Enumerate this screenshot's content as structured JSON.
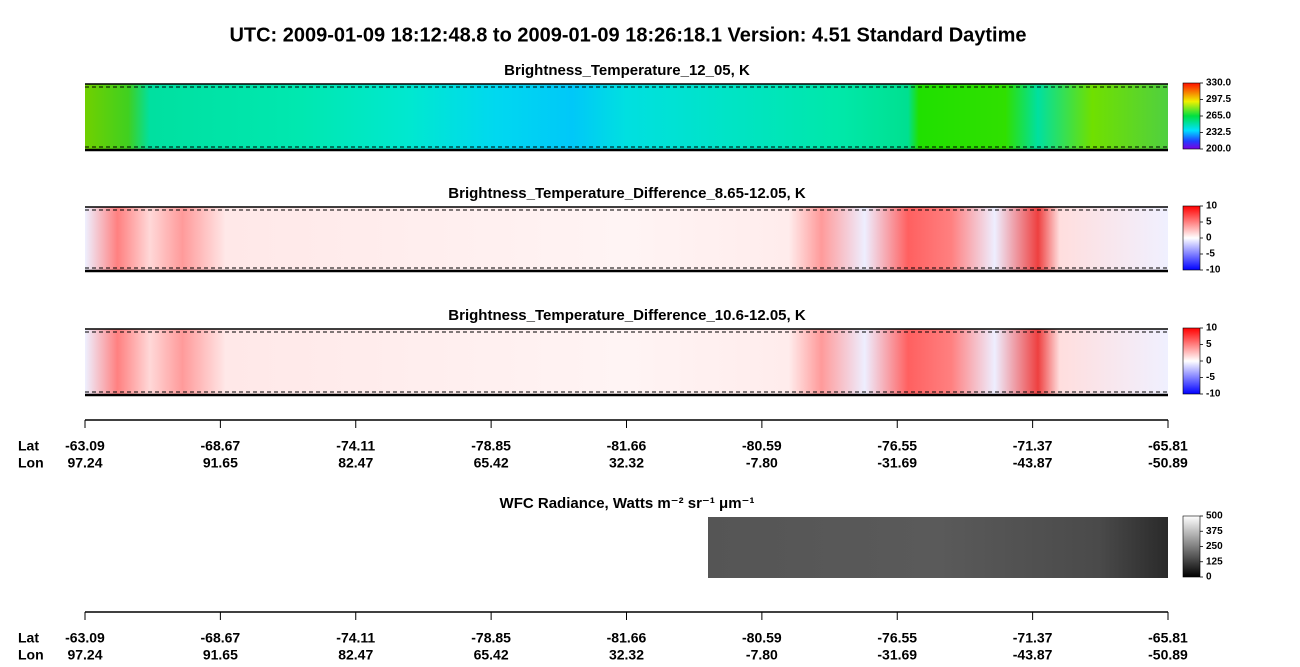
{
  "title": "UTC:  2009-01-09   18:12:48.8  to  2009-01-09   18:26:18.1    Version: 4.51  Standard Daytime",
  "chart_data": [
    {
      "type": "image",
      "title": "Brightness_Temperature_12_05, K",
      "colormap": "rainbow",
      "clim": [
        200,
        330
      ],
      "cticks": [
        {
          "value": 330,
          "label": "330.0"
        },
        297.5,
        {
          "value": 265,
          "label": "265.0"
        },
        232.5,
        {
          "value": 200,
          "label": "200.0"
        }
      ]
    },
    {
      "type": "image",
      "title": "Brightness_Temperature_Difference_8.65-12.05, K",
      "colormap": "bwr",
      "clim": [
        -10,
        10
      ],
      "cticks": [
        10,
        5,
        0,
        -5,
        -10
      ]
    },
    {
      "type": "image",
      "title": "Brightness_Temperature_Difference_10.6-12.05, K",
      "colormap": "bwr",
      "clim": [
        -10,
        10
      ],
      "cticks": [
        10,
        5,
        0,
        -5,
        -10
      ]
    },
    {
      "type": "image",
      "title": "WFC Radiance, Watts m⁻² sr⁻¹ μm⁻¹",
      "colormap": "gray",
      "clim": [
        0,
        500
      ],
      "cticks": [
        500,
        375,
        250,
        125,
        0
      ]
    }
  ],
  "track_axis": {
    "lat_label": "Lat",
    "lon_label": "Lon",
    "lat": [
      -63.09,
      -68.67,
      -74.11,
      -78.85,
      -81.66,
      -80.59,
      -76.55,
      -71.37,
      -65.81
    ],
    "lon": [
      97.24,
      91.65,
      82.47,
      65.42,
      32.32,
      -7.8,
      -31.69,
      -43.87,
      -50.89
    ]
  }
}
